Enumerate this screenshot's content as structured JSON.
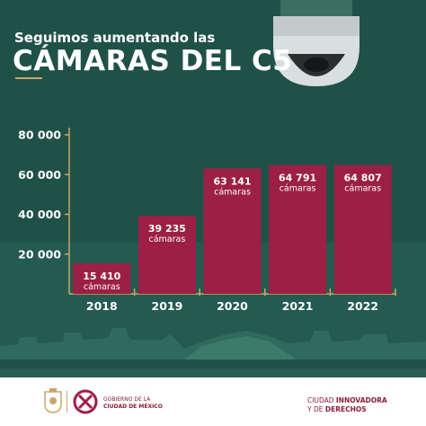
{
  "header": {
    "subtitle": "Seguimos aumentando las",
    "title": "CÁMARAS DEL C5"
  },
  "chart_data": {
    "type": "bar",
    "categories": [
      "2018",
      "2019",
      "2020",
      "2021",
      "2022"
    ],
    "values": [
      15410,
      39235,
      63141,
      64791,
      64807
    ],
    "value_labels": [
      "15 410",
      "39 235",
      "63 141",
      "64 791",
      "64 807"
    ],
    "unit_label": "cámaras",
    "y_ticks": [
      20000,
      40000,
      60000,
      80000
    ],
    "y_tick_labels": [
      "20 000",
      "40 000",
      "60 000",
      "80 000"
    ],
    "ylim": [
      0,
      80000
    ],
    "title": "CÁMARAS DEL C5",
    "xlabel": "",
    "ylabel": "",
    "grid": false,
    "colors": {
      "bar": "#9c1f45",
      "axis": "#c9a66b",
      "text": "#ffffff",
      "background": "#1f5147"
    }
  },
  "footer": {
    "gov_line1": "GOBIERNO DE LA",
    "gov_line2": "CIUDAD DE MÉXICO",
    "city_line1_a": "CIUDAD ",
    "city_line1_b": "INNOVADORA",
    "city_line2_a": "Y DE ",
    "city_line2_b": "DERECHOS",
    "colors": {
      "brand": "#8b1d3a",
      "gold": "#c9a66b"
    }
  }
}
